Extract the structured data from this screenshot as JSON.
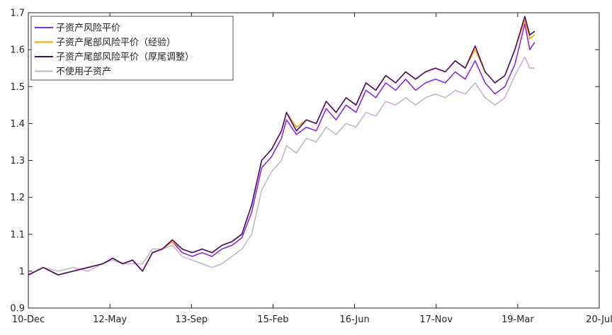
{
  "chart_data": {
    "type": "line",
    "title": "",
    "xlabel": "",
    "ylabel": "",
    "x_ticks": [
      "10-Dec",
      "12-May",
      "13-Sep",
      "15-Feb",
      "16-Jun",
      "17-Nov",
      "19-Mar",
      "20-Jul"
    ],
    "y_ticks": [
      "0.9",
      "1",
      "1.1",
      "1.2",
      "1.3",
      "1.4",
      "1.5",
      "1.6",
      "1.7"
    ],
    "ylim": [
      0.9,
      1.7
    ],
    "xlim": [
      "2010-12",
      "2020-07"
    ],
    "grid": false,
    "legend_position": "top-left",
    "series": [
      {
        "name": "子资产风险平价",
        "color": "#8a2be2",
        "points": [
          [
            "2010-12",
            0.99
          ],
          [
            "2011-03",
            1.01
          ],
          [
            "2011-06",
            0.99
          ],
          [
            "2011-09",
            1.0
          ],
          [
            "2011-12",
            1.01
          ],
          [
            "2012-03",
            1.02
          ],
          [
            "2012-05",
            1.035
          ],
          [
            "2012-07",
            1.02
          ],
          [
            "2012-09",
            1.03
          ],
          [
            "2012-11",
            1.0
          ],
          [
            "2013-01",
            1.05
          ],
          [
            "2013-03",
            1.06
          ],
          [
            "2013-05",
            1.08
          ],
          [
            "2013-07",
            1.05
          ],
          [
            "2013-09",
            1.04
          ],
          [
            "2013-11",
            1.05
          ],
          [
            "2014-01",
            1.04
          ],
          [
            "2014-03",
            1.06
          ],
          [
            "2014-05",
            1.07
          ],
          [
            "2014-07",
            1.09
          ],
          [
            "2014-09",
            1.16
          ],
          [
            "2014-11",
            1.28
          ],
          [
            "2015-01",
            1.31
          ],
          [
            "2015-03",
            1.36
          ],
          [
            "2015-04",
            1.41
          ],
          [
            "2015-06",
            1.37
          ],
          [
            "2015-08",
            1.39
          ],
          [
            "2015-10",
            1.38
          ],
          [
            "2015-12",
            1.44
          ],
          [
            "2016-02",
            1.41
          ],
          [
            "2016-04",
            1.45
          ],
          [
            "2016-06",
            1.43
          ],
          [
            "2016-08",
            1.49
          ],
          [
            "2016-10",
            1.47
          ],
          [
            "2016-12",
            1.51
          ],
          [
            "2017-02",
            1.49
          ],
          [
            "2017-04",
            1.52
          ],
          [
            "2017-06",
            1.49
          ],
          [
            "2017-08",
            1.51
          ],
          [
            "2017-10",
            1.52
          ],
          [
            "2017-12",
            1.51
          ],
          [
            "2018-02",
            1.54
          ],
          [
            "2018-04",
            1.52
          ],
          [
            "2018-06",
            1.57
          ],
          [
            "2018-08",
            1.51
          ],
          [
            "2018-10",
            1.48
          ],
          [
            "2018-12",
            1.5
          ],
          [
            "2019-02",
            1.56
          ],
          [
            "2019-04",
            1.67
          ],
          [
            "2019-05",
            1.6
          ],
          [
            "2019-06",
            1.62
          ]
        ]
      },
      {
        "name": "子资产尾部风险平价（经验）",
        "color": "#ffa500",
        "points": [
          [
            "2010-12",
            0.99
          ],
          [
            "2011-03",
            1.01
          ],
          [
            "2011-06",
            0.99
          ],
          [
            "2011-09",
            1.0
          ],
          [
            "2011-12",
            1.01
          ],
          [
            "2012-03",
            1.02
          ],
          [
            "2012-05",
            1.035
          ],
          [
            "2012-07",
            1.02
          ],
          [
            "2012-09",
            1.03
          ],
          [
            "2012-11",
            1.0
          ],
          [
            "2013-01",
            1.05
          ],
          [
            "2013-03",
            1.06
          ],
          [
            "2013-05",
            1.08
          ],
          [
            "2013-07",
            1.06
          ],
          [
            "2013-09",
            1.05
          ],
          [
            "2013-11",
            1.06
          ],
          [
            "2014-01",
            1.05
          ],
          [
            "2014-03",
            1.07
          ],
          [
            "2014-05",
            1.08
          ],
          [
            "2014-07",
            1.1
          ],
          [
            "2014-09",
            1.18
          ],
          [
            "2014-11",
            1.3
          ],
          [
            "2015-01",
            1.33
          ],
          [
            "2015-03",
            1.38
          ],
          [
            "2015-04",
            1.43
          ],
          [
            "2015-06",
            1.39
          ],
          [
            "2015-08",
            1.41
          ],
          [
            "2015-10",
            1.4
          ],
          [
            "2015-12",
            1.46
          ],
          [
            "2016-02",
            1.43
          ],
          [
            "2016-04",
            1.47
          ],
          [
            "2016-06",
            1.45
          ],
          [
            "2016-08",
            1.51
          ],
          [
            "2016-10",
            1.49
          ],
          [
            "2016-12",
            1.53
          ],
          [
            "2017-02",
            1.51
          ],
          [
            "2017-04",
            1.54
          ],
          [
            "2017-06",
            1.52
          ],
          [
            "2017-08",
            1.54
          ],
          [
            "2017-10",
            1.55
          ],
          [
            "2017-12",
            1.54
          ],
          [
            "2018-02",
            1.57
          ],
          [
            "2018-04",
            1.55
          ],
          [
            "2018-06",
            1.6
          ],
          [
            "2018-08",
            1.54
          ],
          [
            "2018-10",
            1.51
          ],
          [
            "2018-12",
            1.53
          ],
          [
            "2019-02",
            1.6
          ],
          [
            "2019-04",
            1.68
          ],
          [
            "2019-05",
            1.63
          ],
          [
            "2019-06",
            1.64
          ]
        ]
      },
      {
        "name": "子资产尾部风险平价（厚尾调整）",
        "color": "#4b0a6e",
        "points": [
          [
            "2010-12",
            0.99
          ],
          [
            "2011-03",
            1.01
          ],
          [
            "2011-06",
            0.99
          ],
          [
            "2011-09",
            1.0
          ],
          [
            "2011-12",
            1.01
          ],
          [
            "2012-03",
            1.02
          ],
          [
            "2012-05",
            1.035
          ],
          [
            "2012-07",
            1.02
          ],
          [
            "2012-09",
            1.03
          ],
          [
            "2012-11",
            1.0
          ],
          [
            "2013-01",
            1.05
          ],
          [
            "2013-03",
            1.06
          ],
          [
            "2013-05",
            1.085
          ],
          [
            "2013-07",
            1.06
          ],
          [
            "2013-09",
            1.05
          ],
          [
            "2013-11",
            1.06
          ],
          [
            "2014-01",
            1.05
          ],
          [
            "2014-03",
            1.07
          ],
          [
            "2014-05",
            1.08
          ],
          [
            "2014-07",
            1.1
          ],
          [
            "2014-09",
            1.18
          ],
          [
            "2014-11",
            1.3
          ],
          [
            "2015-01",
            1.33
          ],
          [
            "2015-03",
            1.38
          ],
          [
            "2015-04",
            1.43
          ],
          [
            "2015-06",
            1.38
          ],
          [
            "2015-08",
            1.41
          ],
          [
            "2015-10",
            1.4
          ],
          [
            "2015-12",
            1.46
          ],
          [
            "2016-02",
            1.43
          ],
          [
            "2016-04",
            1.47
          ],
          [
            "2016-06",
            1.45
          ],
          [
            "2016-08",
            1.51
          ],
          [
            "2016-10",
            1.49
          ],
          [
            "2016-12",
            1.53
          ],
          [
            "2017-02",
            1.51
          ],
          [
            "2017-04",
            1.54
          ],
          [
            "2017-06",
            1.52
          ],
          [
            "2017-08",
            1.54
          ],
          [
            "2017-10",
            1.55
          ],
          [
            "2017-12",
            1.54
          ],
          [
            "2018-02",
            1.57
          ],
          [
            "2018-04",
            1.55
          ],
          [
            "2018-06",
            1.61
          ],
          [
            "2018-08",
            1.54
          ],
          [
            "2018-10",
            1.51
          ],
          [
            "2018-12",
            1.53
          ],
          [
            "2019-02",
            1.6
          ],
          [
            "2019-04",
            1.69
          ],
          [
            "2019-05",
            1.64
          ],
          [
            "2019-06",
            1.65
          ]
        ]
      },
      {
        "name": "不使用子资产",
        "color": "#c9b3cf",
        "points": [
          [
            "2010-12",
            0.99
          ],
          [
            "2011-03",
            1.01
          ],
          [
            "2011-06",
            1.0
          ],
          [
            "2011-09",
            1.01
          ],
          [
            "2011-12",
            1.0
          ],
          [
            "2012-03",
            1.02
          ],
          [
            "2012-05",
            1.03
          ],
          [
            "2012-07",
            1.02
          ],
          [
            "2012-09",
            1.02
          ],
          [
            "2012-11",
            1.02
          ],
          [
            "2013-01",
            1.06
          ],
          [
            "2013-03",
            1.06
          ],
          [
            "2013-05",
            1.07
          ],
          [
            "2013-07",
            1.04
          ],
          [
            "2013-09",
            1.03
          ],
          [
            "2013-11",
            1.02
          ],
          [
            "2014-01",
            1.01
          ],
          [
            "2014-03",
            1.02
          ],
          [
            "2014-05",
            1.04
          ],
          [
            "2014-07",
            1.06
          ],
          [
            "2014-09",
            1.1
          ],
          [
            "2014-11",
            1.22
          ],
          [
            "2015-01",
            1.27
          ],
          [
            "2015-03",
            1.3
          ],
          [
            "2015-04",
            1.34
          ],
          [
            "2015-06",
            1.32
          ],
          [
            "2015-08",
            1.36
          ],
          [
            "2015-10",
            1.35
          ],
          [
            "2015-12",
            1.39
          ],
          [
            "2016-02",
            1.37
          ],
          [
            "2016-04",
            1.4
          ],
          [
            "2016-06",
            1.39
          ],
          [
            "2016-08",
            1.43
          ],
          [
            "2016-10",
            1.42
          ],
          [
            "2016-12",
            1.46
          ],
          [
            "2017-02",
            1.45
          ],
          [
            "2017-04",
            1.47
          ],
          [
            "2017-06",
            1.45
          ],
          [
            "2017-08",
            1.47
          ],
          [
            "2017-10",
            1.48
          ],
          [
            "2017-12",
            1.47
          ],
          [
            "2018-02",
            1.49
          ],
          [
            "2018-04",
            1.48
          ],
          [
            "2018-06",
            1.51
          ],
          [
            "2018-08",
            1.47
          ],
          [
            "2018-10",
            1.45
          ],
          [
            "2018-12",
            1.47
          ],
          [
            "2019-02",
            1.53
          ],
          [
            "2019-04",
            1.58
          ],
          [
            "2019-05",
            1.55
          ],
          [
            "2019-06",
            1.55
          ]
        ]
      }
    ]
  }
}
